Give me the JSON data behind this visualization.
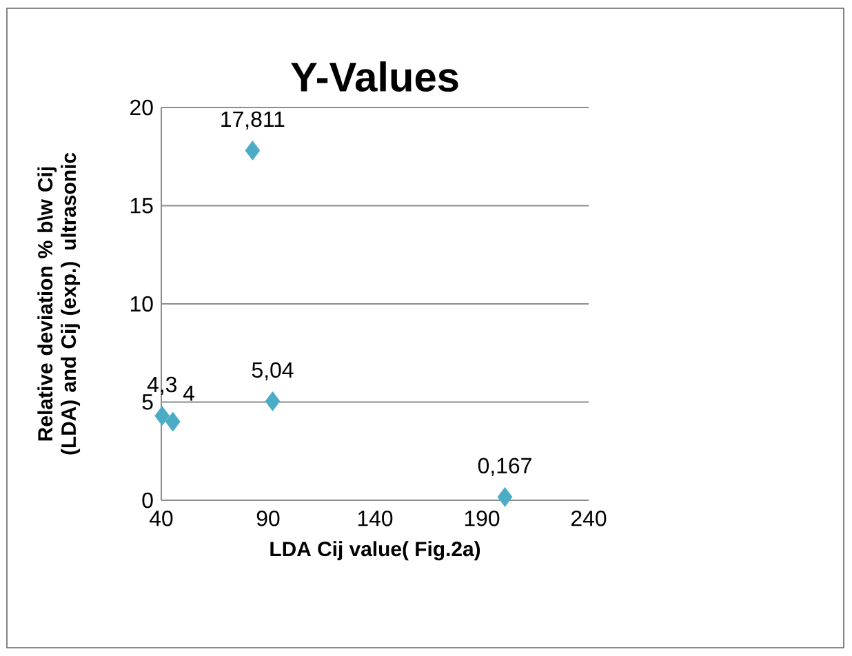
{
  "chart_data": {
    "type": "scatter",
    "title": "Y-Values",
    "xlabel": "LDA Cij value( Fig.2a)",
    "ylabel": "Relative deviation % b\\w Cij (LDA) and Cij (exp.) ultrasonic",
    "x": [
      40.4,
      45.4,
      82.7,
      92.1,
      200.8
    ],
    "series": [
      {
        "color": "#4bacc6",
        "values": [
          4.3,
          4,
          17.811,
          5.04,
          0.167
        ],
        "value_labels": [
          "4,3",
          "4",
          "17,811",
          "5,04",
          "0,167"
        ]
      }
    ],
    "xlim": [
      40,
      240
    ],
    "xticks": [
      40,
      90,
      140,
      190,
      240
    ],
    "ylim": [
      0,
      20
    ],
    "yticks": [
      0,
      5,
      10,
      15,
      20
    ],
    "grid": "y",
    "legend": false,
    "marker": "diamond"
  }
}
